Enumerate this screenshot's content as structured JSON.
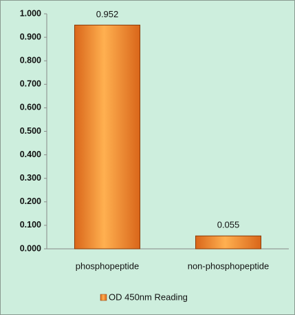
{
  "chart_data": {
    "type": "bar",
    "categories": [
      "phosphopeptide",
      "non-phosphopeptide"
    ],
    "series": [
      {
        "name": "OD 450nm Reading",
        "color": "#f28a1c",
        "values": [
          0.952,
          0.055
        ]
      }
    ],
    "ylim": [
      0,
      1
    ],
    "yticks": [
      {
        "value": 0,
        "label": "0.000"
      },
      {
        "value": 0.1,
        "label": "0.100"
      },
      {
        "value": 0.2,
        "label": "0.200"
      },
      {
        "value": 0.3,
        "label": "0.300"
      },
      {
        "value": 0.4,
        "label": "0.400"
      },
      {
        "value": 0.5,
        "label": "0.500"
      },
      {
        "value": 0.6,
        "label": "0.600"
      },
      {
        "value": 0.7,
        "label": "0.700"
      },
      {
        "value": 0.8,
        "label": "0.800"
      },
      {
        "value": 0.9,
        "label": "0.900"
      },
      {
        "value": 1,
        "label": "1.000"
      }
    ],
    "grid": false,
    "legend": "bottom"
  }
}
